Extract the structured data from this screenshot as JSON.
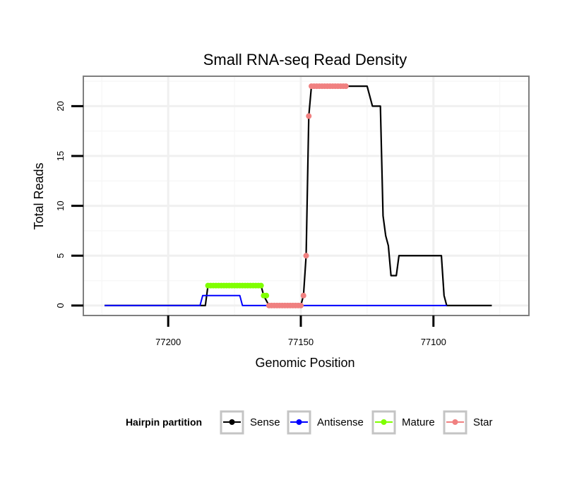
{
  "chart_data": {
    "type": "line",
    "title": "Small RNA-seq Read Density",
    "xlabel": "Genomic Position",
    "ylabel": "Total Reads",
    "xlim": [
      77232,
      77064
    ],
    "x_reversed": true,
    "ylim": [
      -1,
      23
    ],
    "xticks": [
      77200,
      77150,
      77100
    ],
    "yticks": [
      0,
      5,
      10,
      15,
      20
    ],
    "grid": true,
    "legend": {
      "title": "Hairpin partition",
      "placement": "bottom",
      "entries": [
        {
          "name": "Sense",
          "color": "#000000"
        },
        {
          "name": "Antisense",
          "color": "#0000ff"
        },
        {
          "name": "Mature",
          "color": "#7fff00"
        },
        {
          "name": "Star",
          "color": "#f08080"
        }
      ]
    },
    "series": [
      {
        "name": "Sense",
        "color": "#000000",
        "points": [
          [
            77224,
            0
          ],
          [
            77186,
            0
          ],
          [
            77185,
            2
          ],
          [
            77165,
            2
          ],
          [
            77164,
            1
          ],
          [
            77162,
            0
          ],
          [
            77150,
            0
          ],
          [
            77149,
            1
          ],
          [
            77148,
            5
          ],
          [
            77147,
            19
          ],
          [
            77146,
            22
          ],
          [
            77125,
            22
          ],
          [
            77123,
            20
          ],
          [
            77120,
            20
          ],
          [
            77119,
            9
          ],
          [
            77118,
            7
          ],
          [
            77117,
            6
          ],
          [
            77116,
            3
          ],
          [
            77114,
            3
          ],
          [
            77113,
            5
          ],
          [
            77097,
            5
          ],
          [
            77096,
            1
          ],
          [
            77095,
            0
          ],
          [
            77078,
            0
          ]
        ]
      },
      {
        "name": "Antisense",
        "color": "#0000ff",
        "points": [
          [
            77224,
            0
          ],
          [
            77188,
            0
          ],
          [
            77187,
            1
          ],
          [
            77173,
            1
          ],
          [
            77172,
            0
          ],
          [
            77095,
            0
          ]
        ]
      },
      {
        "name": "Mature",
        "color": "#7fff00",
        "points": [
          [
            77185,
            2
          ],
          [
            77184,
            2
          ],
          [
            77183,
            2
          ],
          [
            77182,
            2
          ],
          [
            77181,
            2
          ],
          [
            77180,
            2
          ],
          [
            77179,
            2
          ],
          [
            77178,
            2
          ],
          [
            77177,
            2
          ],
          [
            77176,
            2
          ],
          [
            77175,
            2
          ],
          [
            77174,
            2
          ],
          [
            77173,
            2
          ],
          [
            77172,
            2
          ],
          [
            77171,
            2
          ],
          [
            77170,
            2
          ],
          [
            77169,
            2
          ],
          [
            77168,
            2
          ],
          [
            77167,
            2
          ],
          [
            77166,
            2
          ],
          [
            77165,
            2
          ],
          [
            77164,
            1
          ],
          [
            77163,
            1
          ]
        ]
      },
      {
        "name": "Star",
        "color": "#f08080",
        "points": [
          [
            77162,
            0
          ],
          [
            77161,
            0
          ],
          [
            77160,
            0
          ],
          [
            77159,
            0
          ],
          [
            77158,
            0
          ],
          [
            77157,
            0
          ],
          [
            77156,
            0
          ],
          [
            77155,
            0
          ],
          [
            77154,
            0
          ],
          [
            77153,
            0
          ],
          [
            77152,
            0
          ],
          [
            77151,
            0
          ],
          [
            77150,
            0
          ],
          [
            77149,
            1
          ],
          [
            77148,
            5
          ],
          [
            77147,
            19
          ],
          [
            77146,
            22
          ],
          [
            77145,
            22
          ],
          [
            77144,
            22
          ],
          [
            77143,
            22
          ],
          [
            77142,
            22
          ],
          [
            77141,
            22
          ],
          [
            77140,
            22
          ],
          [
            77139,
            22
          ],
          [
            77138,
            22
          ],
          [
            77137,
            22
          ],
          [
            77136,
            22
          ],
          [
            77135,
            22
          ],
          [
            77134,
            22
          ],
          [
            77133,
            22
          ]
        ]
      }
    ]
  }
}
